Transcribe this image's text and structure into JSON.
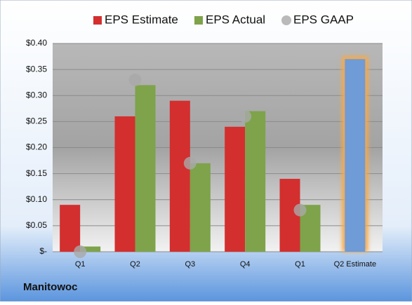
{
  "chart_data": {
    "type": "bar",
    "footer": "Manitowoc",
    "categories": [
      "Q1",
      "Q2",
      "Q3",
      "Q4",
      "Q1",
      "Q2 Estimate"
    ],
    "series": [
      {
        "name": "EPS Estimate",
        "color": "#d32f2f",
        "values": [
          0.09,
          0.26,
          0.29,
          0.24,
          0.14,
          null
        ]
      },
      {
        "name": "EPS Actual",
        "color": "#7ea34a",
        "values": [
          0.01,
          0.32,
          0.17,
          0.27,
          0.09,
          null
        ]
      },
      {
        "name": "EPS GAAP",
        "color": "#a9a9a9",
        "marker": "circle",
        "values": [
          0,
          0.33,
          0.17,
          0.26,
          0.08,
          null
        ]
      }
    ],
    "forecast": {
      "color": "#6f9bd6",
      "glow": "#f5a94a",
      "values": [
        null,
        null,
        null,
        null,
        null,
        0.37
      ]
    },
    "ylim": [
      0,
      0.4
    ],
    "yticks": [
      {
        "value": 0,
        "label": "$-"
      },
      {
        "value": 0.05,
        "label": "$0.05"
      },
      {
        "value": 0.1,
        "label": "$0.10"
      },
      {
        "value": 0.15,
        "label": "$0.15"
      },
      {
        "value": 0.2,
        "label": "$0.20"
      },
      {
        "value": 0.25,
        "label": "$0.25"
      },
      {
        "value": 0.3,
        "label": "$0.30"
      },
      {
        "value": 0.35,
        "label": "$0.35"
      },
      {
        "value": 0.4,
        "label": "$0.40"
      }
    ],
    "grid": true,
    "legend": "top"
  }
}
